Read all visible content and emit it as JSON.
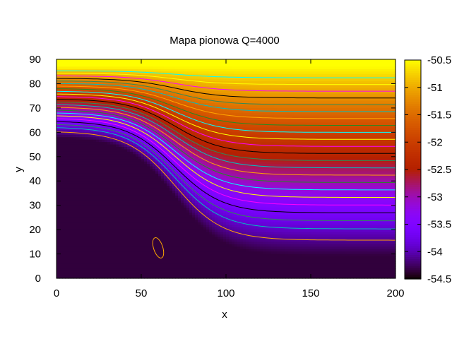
{
  "chart_data": {
    "type": "heatmap",
    "title": "Mapa pionowa Q=4000",
    "xlabel": "x",
    "ylabel": "y",
    "xlim": [
      0,
      200
    ],
    "ylim": [
      0,
      90
    ],
    "xticks": [
      0,
      50,
      100,
      150,
      200
    ],
    "yticks": [
      0,
      10,
      20,
      30,
      40,
      50,
      60,
      70,
      80,
      90
    ],
    "colorbar": {
      "range": [
        -54.5,
        -50.5
      ],
      "ticks": [
        -50.5,
        -51,
        -51.5,
        -52,
        -52.5,
        -53,
        -53.5,
        -54,
        -54.5
      ],
      "tick_labels": [
        "-50.5",
        "-51",
        "-51.5",
        "-52",
        "-52.5",
        "-53",
        "-53.5",
        "-54",
        "-54.5"
      ],
      "palette": "gnuplot pm3d rgbformulae 7,5,15"
    },
    "field": {
      "description": "value decreases with depth; sigmoid step of isolines near x=55-110",
      "left_low_y": 58,
      "right_low_y": 9,
      "top_value": -50.5,
      "bottom_value": -54.35,
      "transition_x_center": 70,
      "transition_width": 14
    },
    "contour_levels": [
      -54.1,
      -53.9,
      -53.75,
      -53.6,
      -53.45,
      -53.3,
      -53.15,
      -53.0,
      -52.85,
      -52.7,
      -52.55,
      -52.4,
      -52.25,
      -52.1,
      -51.95,
      -51.8,
      -51.65,
      -51.5,
      -51.35,
      -51.2,
      -51.05,
      -50.9,
      -50.75
    ],
    "contour_colors": [
      "#ffa500",
      "#00c0c0",
      "#2e8b57",
      "#000000",
      "#ff00ff",
      "#ffff00",
      "#00ffff",
      "#228b22"
    ],
    "closed_contour": {
      "center_x": 60,
      "center_y": 12.5,
      "value": -54.1
    }
  }
}
